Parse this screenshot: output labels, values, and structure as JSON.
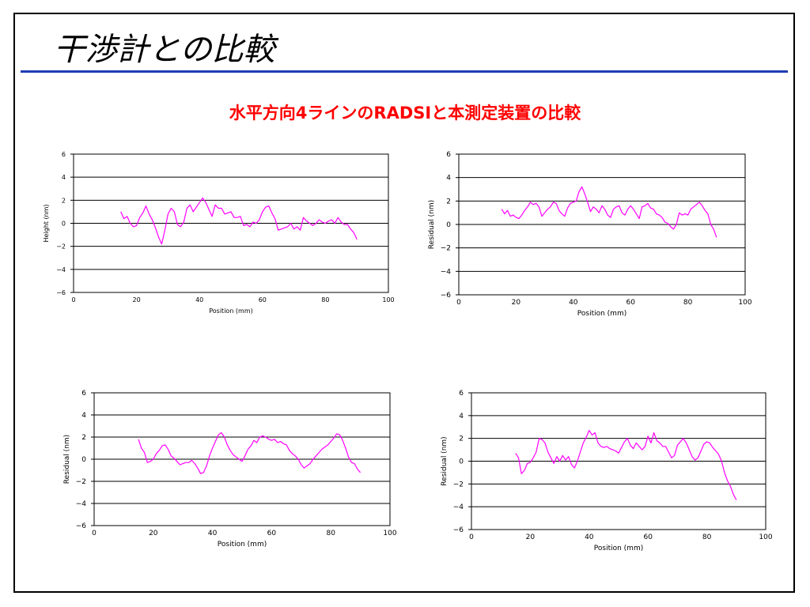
{
  "slide": {
    "title": "干渉計との比較",
    "subtitle": "水平方向4ラインのRADSIと本測定装置の比較",
    "subtitle_color": "#ff0000",
    "rule_color": "#1f3bb5"
  },
  "chart_data": [
    {
      "type": "line",
      "xlabel": "Position (mm)",
      "ylabel": "Height (nm)",
      "xlim": [
        0,
        100
      ],
      "ylim": [
        -6,
        6
      ],
      "xticks": [
        0,
        20,
        40,
        60,
        80,
        100
      ],
      "yticks": [
        -6,
        -4,
        -2,
        0,
        2,
        4,
        6
      ],
      "ytick_labels": [
        "−6",
        "−4",
        "−2",
        "0",
        "2",
        "4",
        "6"
      ],
      "grid": "horizontal",
      "line_color": "#ff00ff",
      "series": [
        {
          "x": [
            15,
            16,
            17,
            18,
            19,
            20,
            21,
            22,
            23,
            24,
            25,
            26,
            27,
            28,
            29,
            30,
            31,
            32,
            33,
            34,
            35,
            36,
            37,
            38,
            39,
            40,
            41,
            42,
            43,
            44,
            45,
            46,
            47,
            48,
            49,
            50,
            51,
            52,
            53,
            54,
            55,
            56,
            57,
            58,
            59,
            60,
            61,
            62,
            63,
            64,
            65,
            66,
            67,
            68,
            69,
            70,
            71,
            72,
            73,
            74,
            75,
            76,
            77,
            78,
            79,
            80,
            81,
            82,
            83,
            84,
            85,
            86,
            87,
            88,
            89,
            90
          ],
          "y": [
            1.0,
            0.4,
            0.6,
            0.0,
            -0.3,
            -0.2,
            0.5,
            0.9,
            1.5,
            0.8,
            0.3,
            -0.4,
            -1.2,
            -1.8,
            -0.6,
            0.8,
            1.3,
            1.0,
            -0.1,
            -0.3,
            0.1,
            1.3,
            1.6,
            1.0,
            1.4,
            1.8,
            2.2,
            1.8,
            1.2,
            0.6,
            1.6,
            1.3,
            1.3,
            0.8,
            0.9,
            1.0,
            0.5,
            0.5,
            0.6,
            -0.2,
            -0.1,
            -0.3,
            0.1,
            0.0,
            0.3,
            1.0,
            1.4,
            1.5,
            0.9,
            0.4,
            -0.6,
            -0.5,
            -0.4,
            -0.3,
            0.0,
            -0.5,
            -0.3,
            -0.6,
            0.5,
            0.2,
            0.0,
            -0.2,
            0.0,
            0.3,
            0.1,
            0.0,
            0.2,
            0.3,
            0.0,
            0.5,
            0.1,
            -0.1,
            -0.1,
            -0.5,
            -0.8,
            -1.4
          ]
        }
      ]
    },
    {
      "type": "line",
      "xlabel": "Position (mm)",
      "ylabel": "Residual  (nm)",
      "xlim": [
        0,
        100
      ],
      "ylim": [
        -6,
        6
      ],
      "xticks": [
        0,
        20,
        40,
        60,
        80,
        100
      ],
      "yticks": [
        -6,
        -4,
        -2,
        0,
        2,
        4,
        6
      ],
      "ytick_labels": [
        "−6",
        "−4",
        "−2",
        "0",
        "2",
        "4",
        "6"
      ],
      "grid": "horizontal",
      "line_color": "#ff00ff",
      "series": [
        {
          "x": [
            15,
            16,
            17,
            18,
            19,
            20,
            21,
            22,
            23,
            24,
            25,
            26,
            27,
            28,
            29,
            30,
            31,
            32,
            33,
            34,
            35,
            36,
            37,
            38,
            39,
            40,
            41,
            42,
            43,
            44,
            45,
            46,
            47,
            48,
            49,
            50,
            51,
            52,
            53,
            54,
            55,
            56,
            57,
            58,
            59,
            60,
            61,
            62,
            63,
            64,
            65,
            66,
            67,
            68,
            69,
            70,
            71,
            72,
            73,
            74,
            75,
            76,
            77,
            78,
            79,
            80,
            81,
            82,
            83,
            84,
            85,
            86,
            87,
            88,
            89,
            90
          ],
          "y": [
            1.3,
            0.9,
            1.2,
            0.7,
            0.8,
            0.6,
            0.5,
            0.8,
            1.2,
            1.5,
            1.9,
            1.7,
            1.8,
            1.5,
            0.7,
            1.0,
            1.3,
            1.5,
            1.9,
            1.8,
            1.2,
            0.9,
            0.7,
            1.4,
            1.8,
            1.9,
            2.0,
            2.8,
            3.2,
            2.6,
            1.9,
            1.1,
            1.5,
            1.3,
            1.0,
            1.6,
            1.3,
            0.8,
            0.6,
            1.3,
            1.5,
            1.6,
            1.0,
            0.8,
            1.3,
            1.6,
            1.3,
            0.9,
            0.5,
            1.5,
            1.6,
            1.8,
            1.4,
            1.3,
            0.9,
            0.8,
            0.6,
            0.2,
            0.1,
            -0.2,
            -0.4,
            0.0,
            1.0,
            0.8,
            0.9,
            0.8,
            1.3,
            1.5,
            1.7,
            1.9,
            1.6,
            1.2,
            0.9,
            0.0,
            -0.4,
            -1.1
          ]
        }
      ]
    },
    {
      "type": "line",
      "xlabel": "Position (mm)",
      "ylabel": "Residual  (nm)",
      "xlim": [
        0,
        100
      ],
      "ylim": [
        -6,
        6
      ],
      "xticks": [
        0,
        20,
        40,
        60,
        80,
        100
      ],
      "yticks": [
        -6,
        -4,
        -2,
        0,
        2,
        4,
        6
      ],
      "ytick_labels": [
        "−6",
        "−4",
        "−2",
        "0",
        "2",
        "4",
        "6"
      ],
      "grid": "horizontal",
      "line_color": "#ff00ff",
      "series": [
        {
          "x": [
            15,
            16,
            17,
            18,
            19,
            20,
            21,
            22,
            23,
            24,
            25,
            26,
            27,
            28,
            29,
            30,
            31,
            32,
            33,
            34,
            35,
            36,
            37,
            38,
            39,
            40,
            41,
            42,
            43,
            44,
            45,
            46,
            47,
            48,
            49,
            50,
            51,
            52,
            53,
            54,
            55,
            56,
            57,
            58,
            59,
            60,
            61,
            62,
            63,
            64,
            65,
            66,
            67,
            68,
            69,
            70,
            71,
            72,
            73,
            74,
            75,
            76,
            77,
            78,
            79,
            80,
            81,
            82,
            83,
            84,
            85,
            86,
            87,
            88,
            89,
            90
          ],
          "y": [
            1.8,
            1.0,
            0.6,
            -0.3,
            -0.2,
            0.0,
            0.5,
            0.8,
            1.2,
            1.3,
            0.9,
            0.3,
            0.1,
            -0.2,
            -0.5,
            -0.4,
            -0.3,
            -0.3,
            -0.1,
            -0.4,
            -0.8,
            -1.3,
            -1.2,
            -0.6,
            0.3,
            1.0,
            1.6,
            2.2,
            2.4,
            2.0,
            1.3,
            0.8,
            0.4,
            0.2,
            0.0,
            -0.2,
            0.3,
            0.9,
            1.2,
            1.7,
            1.5,
            2.0,
            2.1,
            2.0,
            1.8,
            1.7,
            1.8,
            1.5,
            1.6,
            1.4,
            1.3,
            0.8,
            0.5,
            0.3,
            0.0,
            -0.5,
            -0.8,
            -0.6,
            -0.4,
            0.0,
            0.3,
            0.6,
            0.9,
            1.1,
            1.3,
            1.6,
            1.9,
            2.3,
            2.2,
            1.7,
            1.0,
            0.2,
            -0.3,
            -0.4,
            -0.9,
            -1.2
          ]
        }
      ]
    },
    {
      "type": "line",
      "xlabel": "Position (mm)",
      "ylabel": "Residual  (nm)",
      "xlim": [
        0,
        100
      ],
      "ylim": [
        -6,
        6
      ],
      "xticks": [
        0,
        20,
        40,
        60,
        80,
        100
      ],
      "yticks": [
        -6,
        -4,
        -2,
        0,
        2,
        4,
        6
      ],
      "ytick_labels": [
        "−6",
        "−4",
        "−2",
        "0",
        "2",
        "4",
        "6"
      ],
      "grid": "horizontal",
      "line_color": "#ff00ff",
      "series": [
        {
          "x": [
            15,
            16,
            17,
            18,
            19,
            20,
            21,
            22,
            23,
            24,
            25,
            26,
            27,
            28,
            29,
            30,
            31,
            32,
            33,
            34,
            35,
            36,
            37,
            38,
            39,
            40,
            41,
            42,
            43,
            44,
            45,
            46,
            47,
            48,
            49,
            50,
            51,
            52,
            53,
            54,
            55,
            56,
            57,
            58,
            59,
            60,
            61,
            62,
            63,
            64,
            65,
            66,
            67,
            68,
            69,
            70,
            71,
            72,
            73,
            74,
            75,
            76,
            77,
            78,
            79,
            80,
            81,
            82,
            83,
            84,
            85,
            86,
            87,
            88,
            89,
            90
          ],
          "y": [
            0.7,
            0.3,
            -1.1,
            -0.8,
            -0.2,
            -0.1,
            0.3,
            0.8,
            2.0,
            1.9,
            1.6,
            0.8,
            0.3,
            -0.2,
            0.4,
            0.0,
            0.5,
            0.1,
            0.4,
            -0.3,
            -0.6,
            0.0,
            0.8,
            1.6,
            2.1,
            2.7,
            2.3,
            2.5,
            1.6,
            1.3,
            1.2,
            1.3,
            1.1,
            1.0,
            0.9,
            0.7,
            1.2,
            1.7,
            2.0,
            1.4,
            1.1,
            1.6,
            1.3,
            1.0,
            1.3,
            2.2,
            1.6,
            2.5,
            1.8,
            1.6,
            1.3,
            1.3,
            0.8,
            0.3,
            0.5,
            1.4,
            1.7,
            2.0,
            1.6,
            1.0,
            0.4,
            0.1,
            0.3,
            0.9,
            1.5,
            1.7,
            1.6,
            1.2,
            0.9,
            0.6,
            0.0,
            -1.0,
            -1.7,
            -2.2,
            -2.9,
            -3.4
          ]
        }
      ]
    }
  ]
}
